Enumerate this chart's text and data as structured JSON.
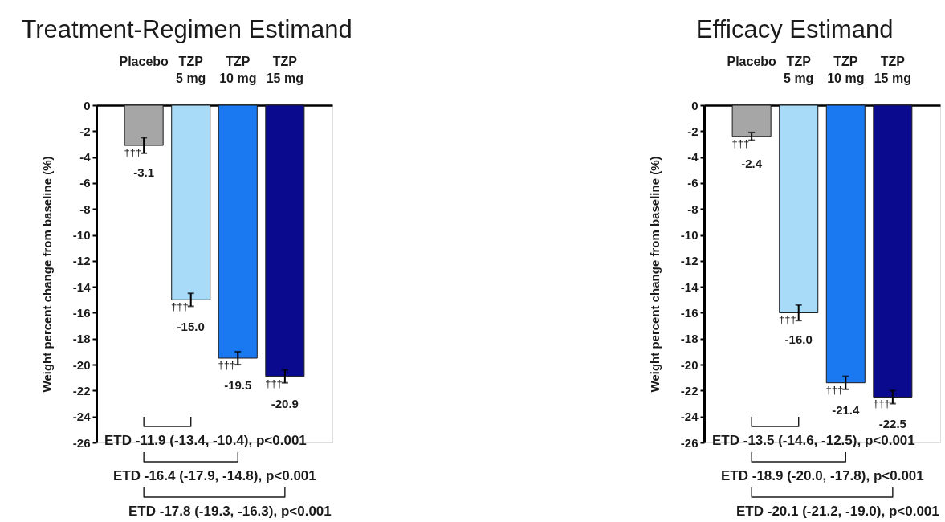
{
  "chart_data": [
    {
      "type": "bar",
      "title": "Treatment-Regimen Estimand",
      "ylabel": "Weight percent change from baseline (%)",
      "categories": [
        "Placebo",
        "TZP\n5 mg",
        "TZP\n10 mg",
        "TZP\n15 mg"
      ],
      "values": [
        -3.1,
        -15.0,
        -19.5,
        -20.9
      ],
      "colors": [
        "#a6a6a6",
        "#a8dbf8",
        "#1a78f0",
        "#0a0a8e"
      ],
      "errors": [
        0.6,
        0.5,
        0.5,
        0.5
      ],
      "value_labels": [
        "-3.1",
        "-15.0",
        "-19.5",
        "-20.9"
      ],
      "ylim": [
        -26,
        0
      ],
      "yticks": [
        -26,
        -24,
        -22,
        -20,
        -18,
        -16,
        -14,
        -12,
        -10,
        -8,
        -6,
        -4,
        -2,
        0
      ],
      "annotations": [
        {
          "text": "†††",
          "x": "Placebo",
          "y": -3.1
        },
        {
          "text": "†††",
          "x": "TZP\n5 mg",
          "y": -15.0
        },
        {
          "text": "†††",
          "x": "TZP\n10 mg",
          "y": -19.5
        },
        {
          "text": "†††",
          "x": "TZP\n15 mg",
          "y": -20.9
        },
        "ETD -11.9 (-13.4, -10.4), p<0.001",
        "ETD -16.4 (-17.9, -14.8), p<0.001",
        "ETD -17.8 (-19.3, -16.3), p<0.001"
      ]
    },
    {
      "type": "bar",
      "title": "Efficacy Estimand",
      "ylabel": "Weight percent change from baseline (%)",
      "categories": [
        "Placebo",
        "TZP\n5 mg",
        "TZP\n10 mg",
        "TZP\n15 mg"
      ],
      "values": [
        -2.4,
        -16.0,
        -21.4,
        -22.5
      ],
      "colors": [
        "#a6a6a6",
        "#a8dbf8",
        "#1a78f0",
        "#0a0a8e"
      ],
      "errors": [
        0.3,
        0.6,
        0.5,
        0.5
      ],
      "value_labels": [
        "-2.4",
        "-16.0",
        "-21.4",
        "-22.5"
      ],
      "ylim": [
        -26,
        0
      ],
      "yticks": [
        -26,
        -24,
        -22,
        -20,
        -18,
        -16,
        -14,
        -12,
        -10,
        -8,
        -6,
        -4,
        -2,
        0
      ],
      "annotations": [
        {
          "text": "†††",
          "x": "Placebo",
          "y": -2.4
        },
        {
          "text": "†††",
          "x": "TZP\n5 mg",
          "y": -16.0
        },
        {
          "text": "†††",
          "x": "TZP\n10 mg",
          "y": -21.4
        },
        {
          "text": "†††",
          "x": "TZP\n15 mg",
          "y": -22.5
        },
        "ETD -13.5 (-14.6, -12.5), p<0.001",
        "ETD -18.9 (-20.0, -17.8), p<0.001",
        "ETD -20.1 (-21.2, -19.0), p<0.001"
      ]
    }
  ]
}
